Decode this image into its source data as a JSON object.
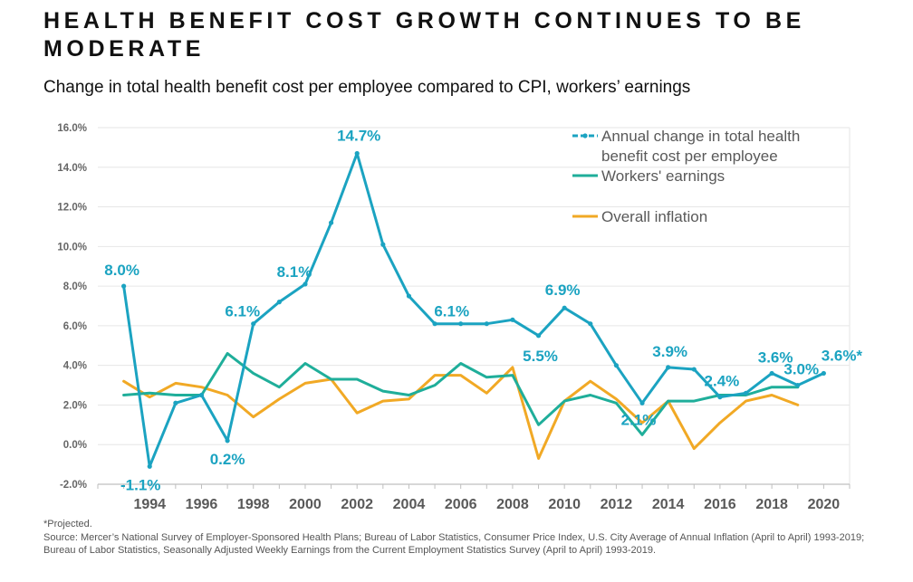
{
  "title": "HEALTH BENEFIT COST GROWTH CONTINUES TO BE MODERATE",
  "subtitle": "Change in total health benefit cost per employee compared to CPI, workers’ earnings",
  "footnote": {
    "projected": "*Projected.",
    "source": "Source: Mercer’s National Survey of Employer-Sponsored Health Plans; Bureau of Labor Statistics, Consumer Price Index, U.S. City Average of Annual Inflation (April to April) 1993-2019; Bureau of Labor Statistics, Seasonally Adjusted Weekly Earnings from the Current Employment Statistics Survey (April to April) 1993-2019."
  },
  "chart_data": {
    "type": "line",
    "ylim": [
      -2,
      16
    ],
    "xlim": [
      1992,
      2021
    ],
    "grid": true,
    "legend_placement": "top-right",
    "y_ticks": [
      -2,
      0,
      2,
      4,
      6,
      8,
      10,
      12,
      14,
      16
    ],
    "y_tick_labels": [
      "-2.0%",
      "0.0%",
      "2.0%",
      "4.0%",
      "6.0%",
      "8.0%",
      "10.0%",
      "12.0%",
      "14.0%",
      "16.0%"
    ],
    "x_ticks": [
      1994,
      1996,
      1998,
      2000,
      2002,
      2004,
      2006,
      2008,
      2010,
      2012,
      2014,
      2016,
      2018,
      2020
    ],
    "x_tick_labels": [
      "1994",
      "1996",
      "1998",
      "2000",
      "2002",
      "2004",
      "2006",
      "2008",
      "2010",
      "2012",
      "2014",
      "2016",
      "2018",
      "2020"
    ],
    "series": [
      {
        "name": "Annual change in total health benefit cost per employee",
        "color": "#1BA3C1",
        "style": "dash-dot",
        "x": [
          1993,
          1994,
          1995,
          1996,
          1997,
          1998,
          1999,
          2000,
          2001,
          2002,
          2003,
          2004,
          2005,
          2006,
          2007,
          2008,
          2009,
          2010,
          2011,
          2012,
          2013,
          2014,
          2015,
          2016,
          2017,
          2018,
          2019,
          2020
        ],
        "values": [
          8.0,
          -1.1,
          2.1,
          2.5,
          0.2,
          6.1,
          7.2,
          8.1,
          11.2,
          14.7,
          10.1,
          7.5,
          6.1,
          6.1,
          6.1,
          6.3,
          5.5,
          6.9,
          6.1,
          4.0,
          2.1,
          3.9,
          3.8,
          2.4,
          2.6,
          3.6,
          3.0,
          3.6
        ]
      },
      {
        "name": "Workers' earnings",
        "color": "#1FAE9A",
        "style": "solid",
        "x": [
          1993,
          1994,
          1995,
          1996,
          1997,
          1998,
          1999,
          2000,
          2001,
          2002,
          2003,
          2004,
          2005,
          2006,
          2007,
          2008,
          2009,
          2010,
          2011,
          2012,
          2013,
          2014,
          2015,
          2016,
          2017,
          2018,
          2019
        ],
        "values": [
          2.5,
          2.6,
          2.5,
          2.5,
          4.6,
          3.6,
          2.9,
          4.1,
          3.3,
          3.3,
          2.7,
          2.5,
          3.0,
          4.1,
          3.4,
          3.5,
          1.0,
          2.2,
          2.5,
          2.1,
          0.5,
          2.2,
          2.2,
          2.5,
          2.5,
          2.9,
          2.9
        ]
      },
      {
        "name": "Overall inflation",
        "color": "#F1A925",
        "style": "solid",
        "x": [
          1993,
          1994,
          1995,
          1996,
          1997,
          1998,
          1999,
          2000,
          2001,
          2002,
          2003,
          2004,
          2005,
          2006,
          2007,
          2008,
          2009,
          2010,
          2011,
          2012,
          2013,
          2014,
          2015,
          2016,
          2017,
          2018,
          2019
        ],
        "values": [
          3.2,
          2.4,
          3.1,
          2.9,
          2.5,
          1.4,
          2.3,
          3.1,
          3.3,
          1.6,
          2.2,
          2.3,
          3.5,
          3.5,
          2.6,
          3.9,
          -0.7,
          2.2,
          3.2,
          2.3,
          1.1,
          2.2,
          -0.2,
          1.1,
          2.2,
          2.5,
          2.0
        ]
      }
    ],
    "data_labels": [
      {
        "x": 1993,
        "y": 8.0,
        "text": "8.0%"
      },
      {
        "x": 1994,
        "y": -1.1,
        "text": "-1.1%"
      },
      {
        "x": 1997,
        "y": 0.2,
        "text": "0.2%"
      },
      {
        "x": 1998,
        "y": 6.1,
        "text": "6.1%"
      },
      {
        "x": 2000,
        "y": 8.1,
        "text": "8.1%"
      },
      {
        "x": 2002,
        "y": 14.7,
        "text": "14.7%"
      },
      {
        "x": 2006,
        "y": 6.1,
        "text": "6.1%"
      },
      {
        "x": 2009,
        "y": 5.5,
        "text": "5.5%"
      },
      {
        "x": 2010,
        "y": 6.9,
        "text": "6.9%"
      },
      {
        "x": 2013,
        "y": 2.1,
        "text": "2.1%"
      },
      {
        "x": 2014,
        "y": 3.9,
        "text": "3.9%"
      },
      {
        "x": 2016,
        "y": 2.4,
        "text": "2.4%"
      },
      {
        "x": 2018,
        "y": 3.6,
        "text": "3.6%"
      },
      {
        "x": 2019,
        "y": 3.0,
        "text": "3.0%"
      },
      {
        "x": 2020,
        "y": 3.6,
        "text": "3.6%*"
      }
    ],
    "label_color": "#1BA3C1"
  }
}
